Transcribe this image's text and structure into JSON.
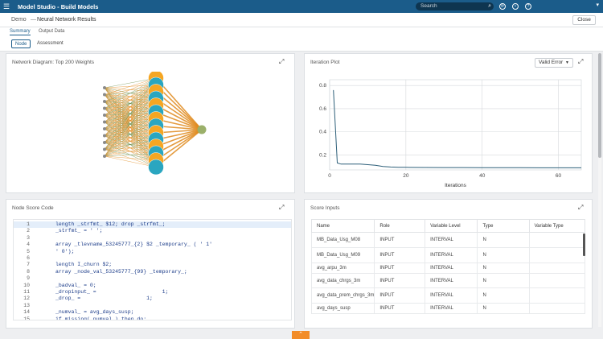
{
  "app": {
    "title": "Model Studio - Build Models"
  },
  "search": {
    "placeholder": "Search"
  },
  "breadcrumb": {
    "project": "Demo",
    "separator": "—",
    "page": "Neural Network Results"
  },
  "close_label": "Close",
  "tabs": [
    {
      "label": "Summary",
      "active": true
    },
    {
      "label": "Output Data",
      "active": false
    }
  ],
  "subtabs": [
    {
      "label": "Node",
      "active": true
    },
    {
      "label": "Assessment",
      "active": false
    }
  ],
  "panels": {
    "network": {
      "title": "Network Diagram: Top 200 Weights"
    },
    "iteration": {
      "title": "Iteration Plot",
      "dropdown": "Valid Error"
    },
    "score_code": {
      "title": "Node Score Code"
    },
    "score_inputs": {
      "title": "Score Inputs"
    }
  },
  "chart_data": {
    "type": "line",
    "title": "",
    "xlabel": "Iterations",
    "ylabel": "",
    "xlim": [
      0,
      66
    ],
    "ylim": [
      0.07,
      0.85
    ],
    "xticks": [
      "0",
      "20",
      "40",
      "60"
    ],
    "yticks": [
      "0.2",
      "0.4",
      "0.6",
      "0.8"
    ],
    "grid": true,
    "series": [
      {
        "x": [
          1,
          2,
          3,
          5,
          8,
          10,
          12,
          14,
          16,
          18,
          20,
          25,
          30,
          35,
          40,
          45,
          50,
          55,
          60,
          66
        ],
        "y": [
          0.76,
          0.13,
          0.12,
          0.12,
          0.12,
          0.115,
          0.11,
          0.1,
          0.095,
          0.093,
          0.092,
          0.091,
          0.09,
          0.09,
          0.089,
          0.089,
          0.089,
          0.088,
          0.088,
          0.088
        ]
      }
    ]
  },
  "code_lines": [
    {
      "n": "1",
      "text": "length _strfmt_ $12; drop _strfmt_;"
    },
    {
      "n": "2",
      "text": "_strfmt_ = ' ';"
    },
    {
      "n": "3",
      "text": ""
    },
    {
      "n": "4",
      "text": "array _tlevname_53245777_{2} $2 _temporary_ ( ' 1'"
    },
    {
      "n": "5",
      "text": "' 0');"
    },
    {
      "n": "6",
      "text": ""
    },
    {
      "n": "7",
      "text": "length I_churn $2;"
    },
    {
      "n": "8",
      "text": "array _node_val_53245777_{99} _temporary_;"
    },
    {
      "n": "9",
      "text": ""
    },
    {
      "n": "10",
      "text": "_badval_ = 0;"
    },
    {
      "n": "11",
      "text": "_dropinput_ =                     1;"
    },
    {
      "n": "12",
      "text": "_drop_ =                     1;"
    },
    {
      "n": "13",
      "text": ""
    },
    {
      "n": "14",
      "text": "_numval_ = avg_days_susp;"
    },
    {
      "n": "15",
      "text": "if missing(_numval_) then do;"
    }
  ],
  "score_inputs": {
    "columns": [
      "Name",
      "Role",
      "Variable Level",
      "Type",
      "Variable Type"
    ],
    "rows": [
      [
        "MB_Data_Usg_M08",
        "INPUT",
        "INTERVAL",
        "N",
        ""
      ],
      [
        "MB_Data_Usg_M09",
        "INPUT",
        "INTERVAL",
        "N",
        ""
      ],
      [
        "avg_arpu_3m",
        "INPUT",
        "INTERVAL",
        "N",
        ""
      ],
      [
        "avg_data_chrgs_3m",
        "INPUT",
        "INTERVAL",
        "N",
        ""
      ],
      [
        "avg_data_prem_chrgs_3m",
        "INPUT",
        "INTERVAL",
        "N",
        ""
      ],
      [
        "avg_days_susp",
        "INPUT",
        "INTERVAL",
        "N",
        ""
      ]
    ]
  },
  "network": {
    "input_labels": [
      "",
      "",
      "",
      "",
      "",
      "",
      "",
      "",
      "",
      "",
      ""
    ],
    "hidden_count": 14,
    "colors": {
      "edge_a": "#e08a1e",
      "edge_b": "#6e8f4a",
      "node_orange": "#f5a623",
      "node_teal": "#2aa6c0",
      "output": "#9bb06a"
    }
  },
  "colors": {
    "brand": "#1b5c8a",
    "accent": "#f28c28",
    "line": "#2d5f79"
  }
}
